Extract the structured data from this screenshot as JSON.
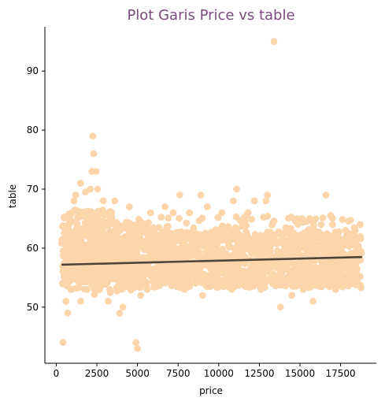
{
  "chart_data": {
    "type": "scatter",
    "title": "Plot Garis Price vs table",
    "xlabel": "price",
    "ylabel": "table",
    "xlim": [
      -700,
      19700
    ],
    "ylim": [
      40.5,
      97.5
    ],
    "xticks": [
      0,
      2500,
      5000,
      7500,
      10000,
      12500,
      15000,
      17500
    ],
    "xtick_labels": [
      "0",
      "2500",
      "5000",
      "7500",
      "10000",
      "12500",
      "15000",
      "17500"
    ],
    "yticks": [
      50,
      60,
      70,
      80,
      90
    ],
    "ytick_labels": [
      "50",
      "60",
      "70",
      "80",
      "90"
    ],
    "grid": false,
    "colors": {
      "title": "#7b4a7e",
      "points": "#fdd5ab",
      "regression_line": "#4d4638",
      "axis": "#000000"
    },
    "regression_line": {
      "x": [
        326,
        18823
      ],
      "y": [
        57.2,
        58.5
      ]
    },
    "series": [
      {
        "points": [
          [
            13400,
            95
          ],
          [
            2250,
            79
          ],
          [
            2300,
            76
          ],
          [
            2200,
            73
          ],
          [
            2450,
            73
          ],
          [
            1500,
            71
          ],
          [
            11100,
            70
          ],
          [
            2100,
            70
          ],
          [
            2550,
            70
          ],
          [
            13000,
            69
          ],
          [
            16600,
            69
          ],
          [
            7600,
            69
          ],
          [
            8900,
            69
          ],
          [
            1200,
            69
          ],
          [
            1800,
            69.5
          ],
          [
            4900,
            44
          ],
          [
            5000,
            43
          ],
          [
            420,
            44
          ],
          [
            700,
            49
          ],
          [
            3900,
            49
          ],
          [
            4100,
            50
          ],
          [
            13800,
            50
          ],
          [
            15800,
            51
          ],
          [
            14500,
            52
          ],
          [
            5200,
            52
          ],
          [
            9000,
            52
          ],
          [
            600,
            51
          ],
          [
            1500,
            51
          ],
          [
            3200,
            51
          ],
          [
            17000,
            64
          ],
          [
            18700,
            64
          ],
          [
            12200,
            68
          ],
          [
            12900,
            68
          ],
          [
            10900,
            68
          ],
          [
            9300,
            67
          ],
          [
            6700,
            67
          ],
          [
            4500,
            67
          ],
          [
            3600,
            68
          ],
          [
            2900,
            68
          ],
          [
            1100,
            68
          ],
          [
            14800,
            65
          ],
          [
            15600,
            65
          ],
          [
            16300,
            64
          ],
          [
            17800,
            63
          ],
          [
            18400,
            63
          ],
          [
            11800,
            66
          ],
          [
            10200,
            66
          ],
          [
            8200,
            66
          ],
          [
            7200,
            66
          ],
          [
            5800,
            66
          ],
          [
            6300,
            55
          ],
          [
            8800,
            55
          ],
          [
            11500,
            55
          ],
          [
            14200,
            55
          ],
          [
            16900,
            55
          ],
          [
            17200,
            53
          ],
          [
            15200,
            53
          ],
          [
            12600,
            53
          ],
          [
            10800,
            53
          ],
          [
            7900,
            53
          ],
          [
            5600,
            53
          ],
          [
            3300,
            53
          ],
          [
            1900,
            53
          ],
          [
            900,
            53
          ],
          [
            18300,
            54
          ]
        ]
      }
    ]
  }
}
